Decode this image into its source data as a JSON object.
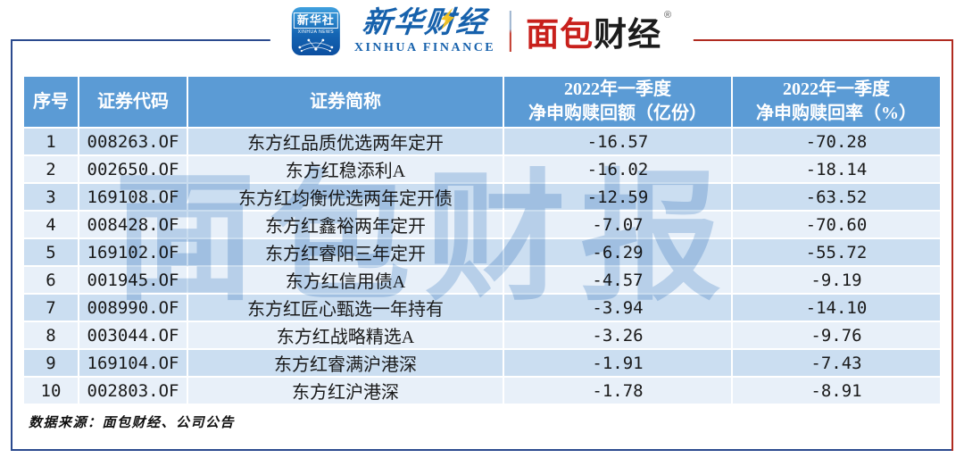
{
  "header_bar": {
    "xinhua_icon": {
      "name": "新华社",
      "caption": "XINHUA NEWS"
    },
    "xinhua_finance": {
      "wordmark": "新华财经",
      "caption": "XINHUA FINANCE"
    },
    "mianbao": {
      "word_red": "面包",
      "word_dark": "财经",
      "reg": "®"
    }
  },
  "watermark": "面包财报",
  "chart_data": {
    "type": "table",
    "columns": [
      "序号",
      "证券代码",
      "证券简称",
      "2022年一季度净申购赎回额（亿份）",
      "2022年一季度净申购赎回率（%）"
    ],
    "header_lines": [
      [
        "序号"
      ],
      [
        "证券代码"
      ],
      [
        "证券简称"
      ],
      [
        "2022年一季度",
        "净申购赎回额（亿份）"
      ],
      [
        "2022年一季度",
        "净申购赎回率（%）"
      ]
    ],
    "rows": [
      [
        "1",
        "008263.OF",
        "东方红品质优选两年定开",
        "-16.57",
        "-70.28"
      ],
      [
        "2",
        "002650.OF",
        "东方红稳添利A",
        "-16.02",
        "-18.14"
      ],
      [
        "3",
        "169108.OF",
        "东方红均衡优选两年定开债",
        "-12.59",
        "-63.52"
      ],
      [
        "4",
        "008428.OF",
        "东方红鑫裕两年定开",
        "-7.07",
        "-70.60"
      ],
      [
        "5",
        "169102.OF",
        "东方红睿阳三年定开",
        "-6.29",
        "-55.72"
      ],
      [
        "6",
        "001945.OF",
        "东方红信用债A",
        "-4.57",
        "-9.19"
      ],
      [
        "7",
        "008990.OF",
        "东方红匠心甄选一年持有",
        "-3.94",
        "-14.10"
      ],
      [
        "8",
        "003044.OF",
        "东方红战略精选A",
        "-3.26",
        "-9.76"
      ],
      [
        "9",
        "169104.OF",
        "东方红睿满沪港深",
        "-1.91",
        "-7.43"
      ],
      [
        "10",
        "002803.OF",
        "东方红沪港深",
        "-1.78",
        "-8.91"
      ]
    ]
  },
  "footer": {
    "source": "数据来源：面包财经、公司公告"
  },
  "colors": {
    "header_bg": "#5B9BD5",
    "row_odd": "#CBDEF1",
    "row_even": "#E8F0F9",
    "frame_blue": "#2B4A8E",
    "frame_red": "#B02B20",
    "brand_red": "#C8201C",
    "brand_blue": "#1661AC",
    "bolt_yellow": "#F5C21E"
  }
}
